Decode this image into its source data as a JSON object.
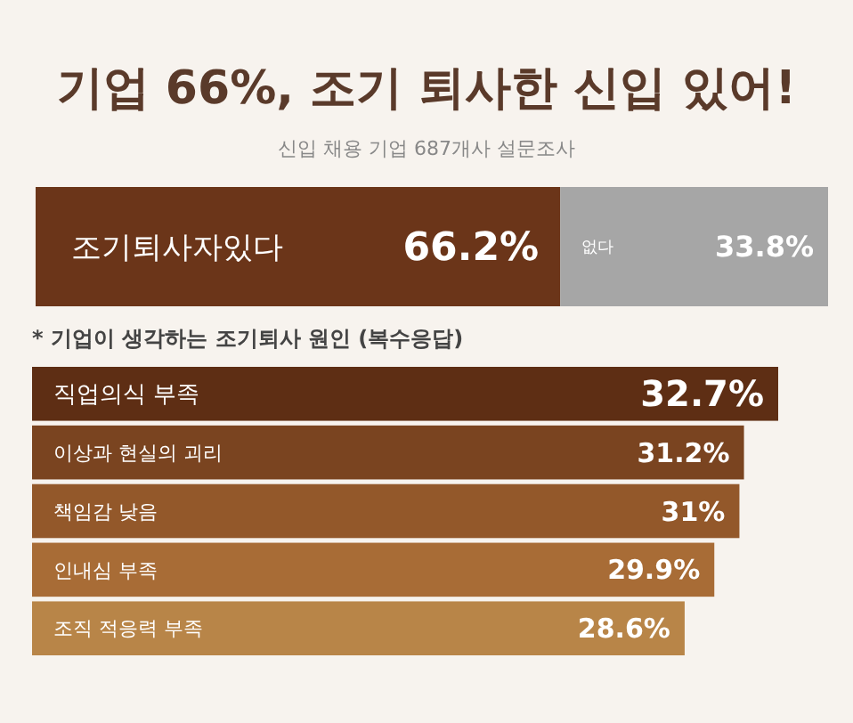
{
  "chart_data": [
    {
      "type": "bar",
      "orientation": "horizontal",
      "stacked": true,
      "title": "기업 66%, 조기 퇴사한 신입 있어!",
      "subtitle": "신입 채용 기업 687개사 설문조사",
      "categories": [
        null
      ],
      "series": [
        {
          "name": "조기퇴사자있다",
          "color": "#6b3519",
          "values": [
            66.2
          ],
          "value_labels": [
            "66.2%"
          ]
        },
        {
          "name": "없다",
          "color": "#a6a6a6",
          "values": [
            33.8
          ],
          "value_labels": [
            "33.8%"
          ]
        }
      ]
    },
    {
      "type": "bar",
      "orientation": "horizontal",
      "title": "* 기업이 생각하는 조기퇴사 원인 (복수응답)",
      "categories": [
        "직업의식 부족",
        "이상과 현실의 괴리",
        "책임감 낮음",
        "인내심 부족",
        "조직 적응력 부족"
      ],
      "values": [
        32.7,
        31.2,
        31,
        29.9,
        28.6
      ],
      "value_labels": [
        "32.7%",
        "31.2%",
        "31%",
        "29.9%",
        "28.6%"
      ],
      "colors": [
        "#5e2e14",
        "#7a4420",
        "#93582a",
        "#a86c36",
        "#b88548"
      ]
    }
  ]
}
